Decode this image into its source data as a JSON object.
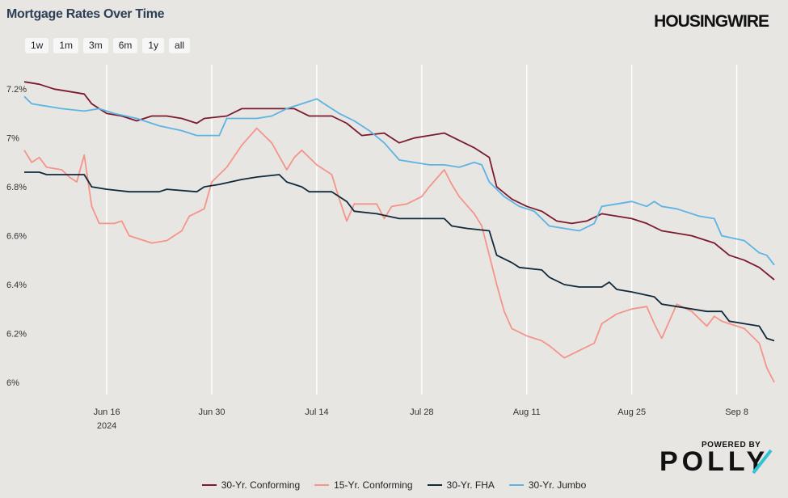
{
  "header": {
    "title": "Mortgage Rates Over Time",
    "brand": "HOUSINGWIRE"
  },
  "range_buttons": [
    "1w",
    "1m",
    "3m",
    "6m",
    "1y",
    "all"
  ],
  "footer": {
    "powered_by": "POWERED BY",
    "logo": "POLLY"
  },
  "colors": {
    "background": "#e8e6e3",
    "grid": "#ffffff"
  },
  "chart_data": {
    "type": "line",
    "x_ticks": [
      {
        "date": "2024-06-16",
        "label": "Jun 16",
        "sublabel": "2024"
      },
      {
        "date": "2024-06-30",
        "label": "Jun 30"
      },
      {
        "date": "2024-07-14",
        "label": "Jul 14"
      },
      {
        "date": "2024-07-28",
        "label": "Jul 28"
      },
      {
        "date": "2024-08-11",
        "label": "Aug 11"
      },
      {
        "date": "2024-08-25",
        "label": "Aug 25"
      },
      {
        "date": "2024-09-08",
        "label": "Sep 8"
      }
    ],
    "xlim": [
      "2024-06-05",
      "2024-09-13"
    ],
    "ylim": [
      5.95,
      7.3
    ],
    "y_ticks": [
      {
        "value": 6.0,
        "label": "6%"
      },
      {
        "value": 6.2,
        "label": "6.2%"
      },
      {
        "value": 6.4,
        "label": "6.4%"
      },
      {
        "value": 6.6,
        "label": "6.6%"
      },
      {
        "value": 6.8,
        "label": "6.8%"
      },
      {
        "value": 7.0,
        "label": "7%"
      },
      {
        "value": 7.2,
        "label": "7.2%"
      }
    ],
    "legend_position": "bottom",
    "series": [
      {
        "name": "30-Yr. Conforming",
        "color": "#7a1a2c",
        "points": [
          [
            "2024-06-05",
            7.23
          ],
          [
            "2024-06-07",
            7.22
          ],
          [
            "2024-06-09",
            7.2
          ],
          [
            "2024-06-11",
            7.19
          ],
          [
            "2024-06-13",
            7.18
          ],
          [
            "2024-06-14",
            7.14
          ],
          [
            "2024-06-16",
            7.1
          ],
          [
            "2024-06-18",
            7.09
          ],
          [
            "2024-06-20",
            7.07
          ],
          [
            "2024-06-22",
            7.09
          ],
          [
            "2024-06-24",
            7.09
          ],
          [
            "2024-06-26",
            7.08
          ],
          [
            "2024-06-28",
            7.06
          ],
          [
            "2024-06-29",
            7.08
          ],
          [
            "2024-07-02",
            7.09
          ],
          [
            "2024-07-04",
            7.12
          ],
          [
            "2024-07-06",
            7.12
          ],
          [
            "2024-07-09",
            7.12
          ],
          [
            "2024-07-11",
            7.12
          ],
          [
            "2024-07-13",
            7.09
          ],
          [
            "2024-07-16",
            7.09
          ],
          [
            "2024-07-18",
            7.06
          ],
          [
            "2024-07-20",
            7.01
          ],
          [
            "2024-07-23",
            7.02
          ],
          [
            "2024-07-25",
            6.98
          ],
          [
            "2024-07-27",
            7.0
          ],
          [
            "2024-07-29",
            7.01
          ],
          [
            "2024-07-31",
            7.02
          ],
          [
            "2024-08-02",
            6.99
          ],
          [
            "2024-08-04",
            6.96
          ],
          [
            "2024-08-06",
            6.92
          ],
          [
            "2024-08-07",
            6.8
          ],
          [
            "2024-08-09",
            6.75
          ],
          [
            "2024-08-11",
            6.72
          ],
          [
            "2024-08-13",
            6.7
          ],
          [
            "2024-08-15",
            6.66
          ],
          [
            "2024-08-17",
            6.65
          ],
          [
            "2024-08-19",
            6.66
          ],
          [
            "2024-08-21",
            6.69
          ],
          [
            "2024-08-23",
            6.68
          ],
          [
            "2024-08-25",
            6.67
          ],
          [
            "2024-08-27",
            6.65
          ],
          [
            "2024-08-29",
            6.62
          ],
          [
            "2024-08-31",
            6.61
          ],
          [
            "2024-09-02",
            6.6
          ],
          [
            "2024-09-05",
            6.57
          ],
          [
            "2024-09-07",
            6.52
          ],
          [
            "2024-09-09",
            6.5
          ],
          [
            "2024-09-11",
            6.47
          ],
          [
            "2024-09-13",
            6.42
          ]
        ]
      },
      {
        "name": "15-Yr. Conforming",
        "color": "#f4948a",
        "points": [
          [
            "2024-06-05",
            6.95
          ],
          [
            "2024-06-06",
            6.9
          ],
          [
            "2024-06-07",
            6.92
          ],
          [
            "2024-06-08",
            6.88
          ],
          [
            "2024-06-10",
            6.87
          ],
          [
            "2024-06-11",
            6.84
          ],
          [
            "2024-06-12",
            6.82
          ],
          [
            "2024-06-13",
            6.93
          ],
          [
            "2024-06-14",
            6.72
          ],
          [
            "2024-06-15",
            6.65
          ],
          [
            "2024-06-17",
            6.65
          ],
          [
            "2024-06-18",
            6.66
          ],
          [
            "2024-06-19",
            6.6
          ],
          [
            "2024-06-21",
            6.58
          ],
          [
            "2024-06-22",
            6.57
          ],
          [
            "2024-06-24",
            6.58
          ],
          [
            "2024-06-26",
            6.62
          ],
          [
            "2024-06-27",
            6.68
          ],
          [
            "2024-06-29",
            6.71
          ],
          [
            "2024-06-30",
            6.82
          ],
          [
            "2024-07-02",
            6.88
          ],
          [
            "2024-07-04",
            6.97
          ],
          [
            "2024-07-06",
            7.04
          ],
          [
            "2024-07-08",
            6.98
          ],
          [
            "2024-07-10",
            6.87
          ],
          [
            "2024-07-11",
            6.92
          ],
          [
            "2024-07-12",
            6.95
          ],
          [
            "2024-07-14",
            6.89
          ],
          [
            "2024-07-16",
            6.85
          ],
          [
            "2024-07-17",
            6.75
          ],
          [
            "2024-07-18",
            6.66
          ],
          [
            "2024-07-19",
            6.73
          ],
          [
            "2024-07-20",
            6.73
          ],
          [
            "2024-07-22",
            6.73
          ],
          [
            "2024-07-23",
            6.67
          ],
          [
            "2024-07-24",
            6.72
          ],
          [
            "2024-07-26",
            6.73
          ],
          [
            "2024-07-28",
            6.76
          ],
          [
            "2024-07-29",
            6.8
          ],
          [
            "2024-07-31",
            6.87
          ],
          [
            "2024-08-01",
            6.81
          ],
          [
            "2024-08-02",
            6.76
          ],
          [
            "2024-08-04",
            6.69
          ],
          [
            "2024-08-05",
            6.64
          ],
          [
            "2024-08-06",
            6.52
          ],
          [
            "2024-08-07",
            6.4
          ],
          [
            "2024-08-08",
            6.29
          ],
          [
            "2024-08-09",
            6.22
          ],
          [
            "2024-08-11",
            6.19
          ],
          [
            "2024-08-13",
            6.17
          ],
          [
            "2024-08-14",
            6.15
          ],
          [
            "2024-08-16",
            6.1
          ],
          [
            "2024-08-18",
            6.13
          ],
          [
            "2024-08-20",
            6.16
          ],
          [
            "2024-08-21",
            6.24
          ],
          [
            "2024-08-23",
            6.28
          ],
          [
            "2024-08-25",
            6.3
          ],
          [
            "2024-08-27",
            6.31
          ],
          [
            "2024-08-28",
            6.24
          ],
          [
            "2024-08-29",
            6.18
          ],
          [
            "2024-08-30",
            6.25
          ],
          [
            "2024-08-31",
            6.32
          ],
          [
            "2024-09-02",
            6.29
          ],
          [
            "2024-09-04",
            6.23
          ],
          [
            "2024-09-05",
            6.27
          ],
          [
            "2024-09-06",
            6.25
          ],
          [
            "2024-09-07",
            6.24
          ],
          [
            "2024-09-09",
            6.22
          ],
          [
            "2024-09-11",
            6.16
          ],
          [
            "2024-09-12",
            6.06
          ],
          [
            "2024-09-13",
            6.0
          ]
        ]
      },
      {
        "name": "30-Yr. FHA",
        "color": "#102a3a",
        "points": [
          [
            "2024-06-05",
            6.86
          ],
          [
            "2024-06-07",
            6.86
          ],
          [
            "2024-06-08",
            6.85
          ],
          [
            "2024-06-13",
            6.85
          ],
          [
            "2024-06-14",
            6.8
          ],
          [
            "2024-06-16",
            6.79
          ],
          [
            "2024-06-19",
            6.78
          ],
          [
            "2024-06-23",
            6.78
          ],
          [
            "2024-06-24",
            6.79
          ],
          [
            "2024-06-28",
            6.78
          ],
          [
            "2024-06-29",
            6.8
          ],
          [
            "2024-07-01",
            6.81
          ],
          [
            "2024-07-04",
            6.83
          ],
          [
            "2024-07-06",
            6.84
          ],
          [
            "2024-07-09",
            6.85
          ],
          [
            "2024-07-10",
            6.82
          ],
          [
            "2024-07-12",
            6.8
          ],
          [
            "2024-07-13",
            6.78
          ],
          [
            "2024-07-16",
            6.78
          ],
          [
            "2024-07-18",
            6.74
          ],
          [
            "2024-07-19",
            6.7
          ],
          [
            "2024-07-22",
            6.69
          ],
          [
            "2024-07-25",
            6.67
          ],
          [
            "2024-07-28",
            6.67
          ],
          [
            "2024-07-31",
            6.67
          ],
          [
            "2024-08-01",
            6.64
          ],
          [
            "2024-08-03",
            6.63
          ],
          [
            "2024-08-06",
            6.62
          ],
          [
            "2024-08-07",
            6.52
          ],
          [
            "2024-08-09",
            6.49
          ],
          [
            "2024-08-10",
            6.47
          ],
          [
            "2024-08-13",
            6.46
          ],
          [
            "2024-08-14",
            6.43
          ],
          [
            "2024-08-16",
            6.4
          ],
          [
            "2024-08-18",
            6.39
          ],
          [
            "2024-08-21",
            6.39
          ],
          [
            "2024-08-22",
            6.41
          ],
          [
            "2024-08-23",
            6.38
          ],
          [
            "2024-08-25",
            6.37
          ],
          [
            "2024-08-28",
            6.35
          ],
          [
            "2024-08-29",
            6.32
          ],
          [
            "2024-08-31",
            6.31
          ],
          [
            "2024-09-02",
            6.3
          ],
          [
            "2024-09-04",
            6.29
          ],
          [
            "2024-09-06",
            6.29
          ],
          [
            "2024-09-07",
            6.25
          ],
          [
            "2024-09-09",
            6.24
          ],
          [
            "2024-09-11",
            6.23
          ],
          [
            "2024-09-12",
            6.18
          ],
          [
            "2024-09-13",
            6.17
          ]
        ]
      },
      {
        "name": "30-Yr. Jumbo",
        "color": "#5cb4e3",
        "points": [
          [
            "2024-06-05",
            7.17
          ],
          [
            "2024-06-06",
            7.14
          ],
          [
            "2024-06-08",
            7.13
          ],
          [
            "2024-06-10",
            7.12
          ],
          [
            "2024-06-13",
            7.11
          ],
          [
            "2024-06-15",
            7.12
          ],
          [
            "2024-06-17",
            7.1
          ],
          [
            "2024-06-20",
            7.08
          ],
          [
            "2024-06-23",
            7.05
          ],
          [
            "2024-06-26",
            7.03
          ],
          [
            "2024-06-28",
            7.01
          ],
          [
            "2024-07-01",
            7.01
          ],
          [
            "2024-07-02",
            7.08
          ],
          [
            "2024-07-04",
            7.08
          ],
          [
            "2024-07-06",
            7.08
          ],
          [
            "2024-07-08",
            7.09
          ],
          [
            "2024-07-10",
            7.12
          ],
          [
            "2024-07-12",
            7.14
          ],
          [
            "2024-07-14",
            7.16
          ],
          [
            "2024-07-15",
            7.14
          ],
          [
            "2024-07-17",
            7.1
          ],
          [
            "2024-07-19",
            7.07
          ],
          [
            "2024-07-21",
            7.03
          ],
          [
            "2024-07-23",
            6.98
          ],
          [
            "2024-07-25",
            6.91
          ],
          [
            "2024-07-27",
            6.9
          ],
          [
            "2024-07-29",
            6.89
          ],
          [
            "2024-07-31",
            6.89
          ],
          [
            "2024-08-02",
            6.88
          ],
          [
            "2024-08-04",
            6.9
          ],
          [
            "2024-08-05",
            6.89
          ],
          [
            "2024-08-06",
            6.82
          ],
          [
            "2024-08-08",
            6.76
          ],
          [
            "2024-08-10",
            6.72
          ],
          [
            "2024-08-12",
            6.7
          ],
          [
            "2024-08-14",
            6.64
          ],
          [
            "2024-08-16",
            6.63
          ],
          [
            "2024-08-18",
            6.62
          ],
          [
            "2024-08-20",
            6.65
          ],
          [
            "2024-08-21",
            6.72
          ],
          [
            "2024-08-23",
            6.73
          ],
          [
            "2024-08-25",
            6.74
          ],
          [
            "2024-08-27",
            6.72
          ],
          [
            "2024-08-28",
            6.74
          ],
          [
            "2024-08-29",
            6.72
          ],
          [
            "2024-08-31",
            6.71
          ],
          [
            "2024-09-03",
            6.68
          ],
          [
            "2024-09-05",
            6.67
          ],
          [
            "2024-09-06",
            6.6
          ],
          [
            "2024-09-09",
            6.58
          ],
          [
            "2024-09-11",
            6.53
          ],
          [
            "2024-09-12",
            6.52
          ],
          [
            "2024-09-13",
            6.48
          ]
        ]
      }
    ]
  }
}
